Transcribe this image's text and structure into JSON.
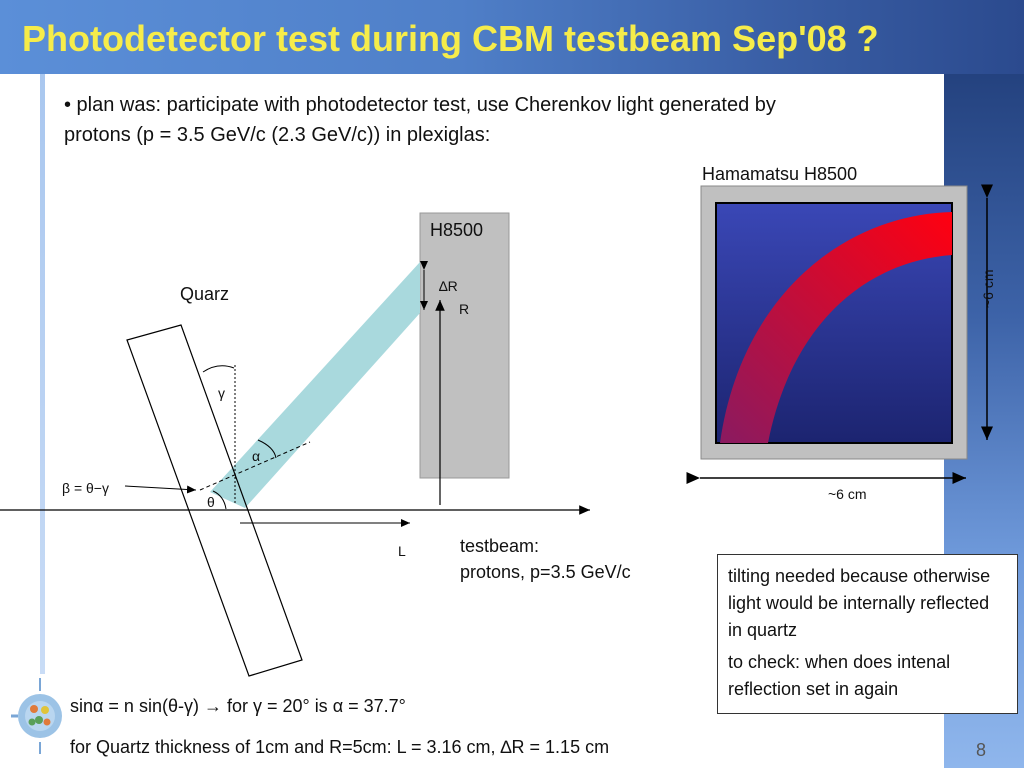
{
  "slide": {
    "title": "Photodetector test during CBM testbeam Sep'08 ?",
    "bullet": "• plan was: participate with photodetector test, use Cherenkov light generated by protons (p = 3.5 GeV/c (2.3 GeV/c)) in plexiglas:",
    "labels": {
      "hamamatsu": "Hamamatsu H8500",
      "h8500": "H8500",
      "quarz": "Quarz",
      "delta_r": "∆R",
      "r": "R",
      "gamma": "γ",
      "alpha": "α",
      "beta_eq": "β = θ−γ",
      "theta": "θ",
      "l": "L",
      "testbeam_line1": "testbeam:",
      "testbeam_line2": "protons, p=3.5 GeV/c",
      "width_6cm": "~6 cm",
      "height_6cm": "~6 cm"
    },
    "note": {
      "line1": "tilting needed because otherwise light would be internally reflected in quartz",
      "line2": "to check: when does intenal reflection set in again"
    },
    "formula1": "sinα = n sin(θ-γ) → for γ = 20° is α = 37.7°",
    "formula2": "for Quartz thickness of 1cm and R=5cm: L = 3.16 cm, ∆R = 1.15 cm",
    "page_number": "8"
  },
  "colors": {
    "title_text": "#f6ec4a",
    "cone": "#a9d9dd",
    "detector_gray": "#c0c0c0",
    "pmt_blue": "#1f2a80",
    "ring_red": "#e8001a"
  }
}
